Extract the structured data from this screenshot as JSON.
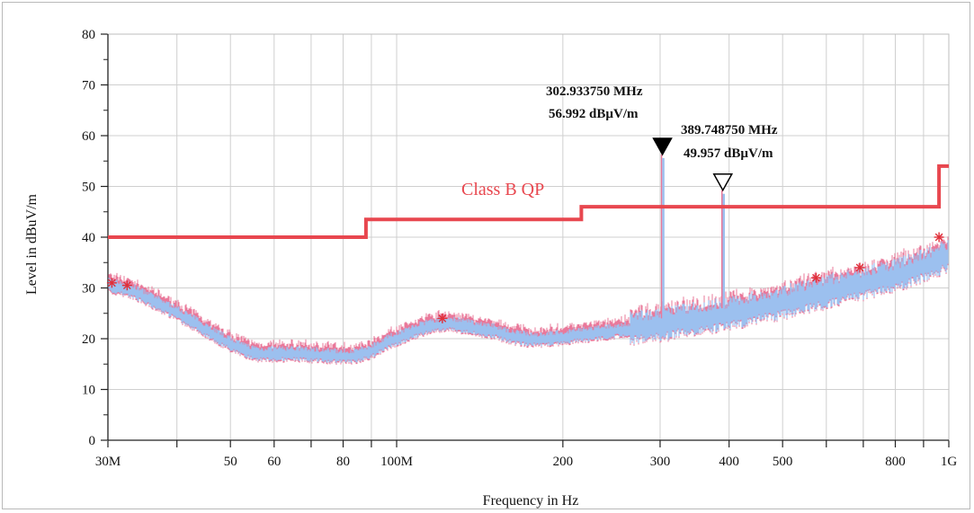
{
  "chart_data": {
    "type": "line",
    "xscale": "log",
    "xlim": [
      30000000,
      1000000000
    ],
    "ylim": [
      0,
      80
    ],
    "grid": true,
    "xlabel": "Frequency in Hz",
    "ylabel": "Level in dBuV/m",
    "y_ticks": [
      "0",
      "10",
      "20",
      "30",
      "40",
      "50",
      "60",
      "70",
      "80"
    ],
    "x_ticks": [
      {
        "value": 30000000,
        "label": "30M"
      },
      {
        "value": 50000000,
        "label": "50"
      },
      {
        "value": 60000000,
        "label": "60"
      },
      {
        "value": 80000000,
        "label": "80"
      },
      {
        "value": 100000000,
        "label": "100M"
      },
      {
        "value": 200000000,
        "label": "200"
      },
      {
        "value": 300000000,
        "label": "300"
      },
      {
        "value": 400000000,
        "label": "400"
      },
      {
        "value": 500000000,
        "label": "500"
      },
      {
        "value": 800000000,
        "label": "800"
      },
      {
        "value": 1000000000,
        "label": "1G"
      }
    ],
    "x_minor_ticks": [
      40000000,
      70000000,
      90000000,
      600000000,
      700000000,
      900000000
    ],
    "limit_line": {
      "name": "Class B QP",
      "color": "#e8474f",
      "points": [
        [
          30000000,
          40
        ],
        [
          88000000,
          40
        ],
        [
          88000000,
          43.5
        ],
        [
          216000000,
          43.5
        ],
        [
          216000000,
          46
        ],
        [
          960000000,
          46
        ],
        [
          960000000,
          54
        ],
        [
          1000000000,
          54
        ]
      ]
    },
    "series": [
      {
        "color": "#9cc0ef",
        "noise_color": "#e9789a",
        "x": [
          30000000,
          33000000,
          36000000,
          40000000,
          44000000,
          48000000,
          52000000,
          56000000,
          60000000,
          66000000,
          72000000,
          78000000,
          82000000,
          86000000,
          90000000,
          95000000,
          100000000,
          108000000,
          116000000,
          124000000,
          132000000,
          140000000,
          150000000,
          160000000,
          170000000,
          180000000,
          190000000,
          200000000,
          220000000,
          240000000,
          260000000,
          280000000,
          300000000,
          330000000,
          360000000,
          400000000,
          450000000,
          500000000,
          560000000,
          620000000,
          700000000,
          780000000,
          860000000,
          940000000,
          1000000000
        ],
        "y": [
          30.5,
          29.5,
          27.5,
          25,
          22.5,
          20,
          18,
          17,
          17,
          17,
          16.8,
          16.5,
          16.5,
          16.8,
          17.5,
          19,
          20,
          21.5,
          22.5,
          23,
          22.5,
          22,
          21.5,
          20.5,
          20,
          19.8,
          20,
          20.3,
          20.8,
          21.3,
          21.8,
          22.3,
          22.5,
          23.5,
          24,
          24.8,
          26,
          27,
          28.3,
          29.5,
          30.8,
          32,
          33.5,
          35,
          36.5
        ]
      }
    ],
    "spikes": [
      {
        "x": 302933750,
        "y": 56.992,
        "base": 24
      },
      {
        "x": 389748750,
        "y": 49.957,
        "base": 26
      }
    ],
    "qp_points": [
      {
        "x": 30500000,
        "y": 31
      },
      {
        "x": 32500000,
        "y": 30.5
      },
      {
        "x": 121000000,
        "y": 24
      },
      {
        "x": 575000000,
        "y": 32
      },
      {
        "x": 690000000,
        "y": 34
      },
      {
        "x": 960000000,
        "y": 40
      }
    ],
    "markers": [
      {
        "freq_text": "302.933750 MHz",
        "level_text": "56.992 dBµV/m",
        "x": 302933750,
        "y": 56.992,
        "filled": true
      },
      {
        "freq_text": "389.748750 MHz",
        "level_text": "49.957 dBµV/m",
        "x": 389748750,
        "y": 49.957,
        "filled": false
      }
    ]
  }
}
